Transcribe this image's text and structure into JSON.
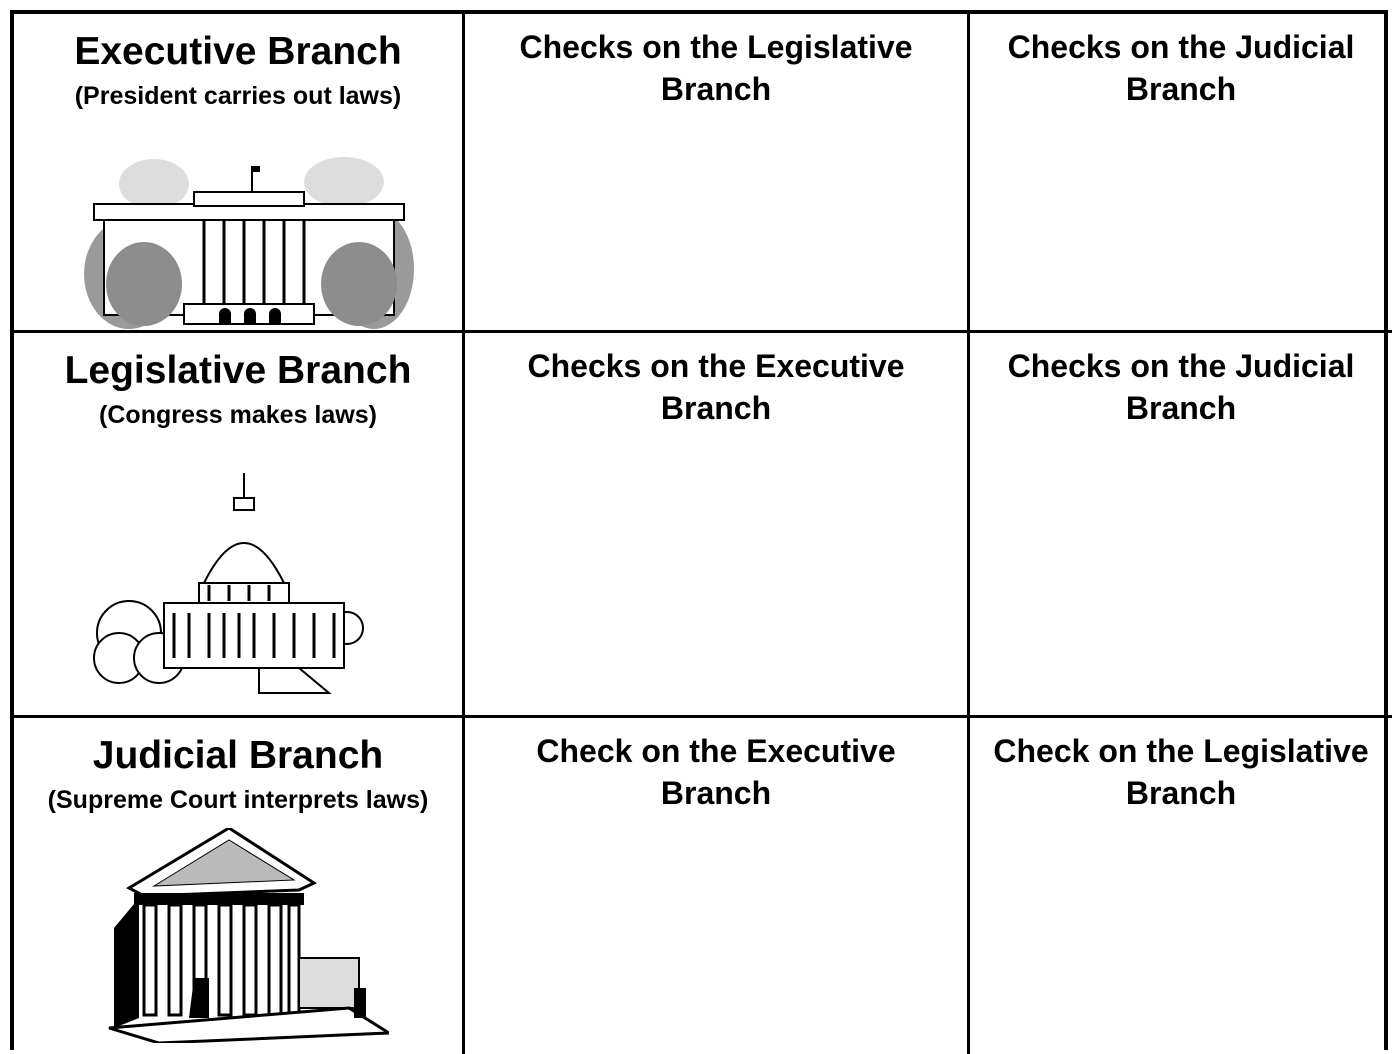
{
  "table": {
    "rows": [
      {
        "branch": "Executive Branch",
        "role": "(President carries out laws)",
        "checks": [
          "Checks on the Legislative Branch",
          "Checks on the Judicial Branch"
        ]
      },
      {
        "branch": "Legislative Branch",
        "role": "(Congress makes laws)",
        "checks": [
          "Checks on the Executive Branch",
          "Checks on the Judicial Branch"
        ]
      },
      {
        "branch": "Judicial Branch",
        "role": "(Supreme Court interprets laws)",
        "checks": [
          "Check on the Executive Branch",
          "Check on the Legislative Branch"
        ]
      }
    ]
  }
}
